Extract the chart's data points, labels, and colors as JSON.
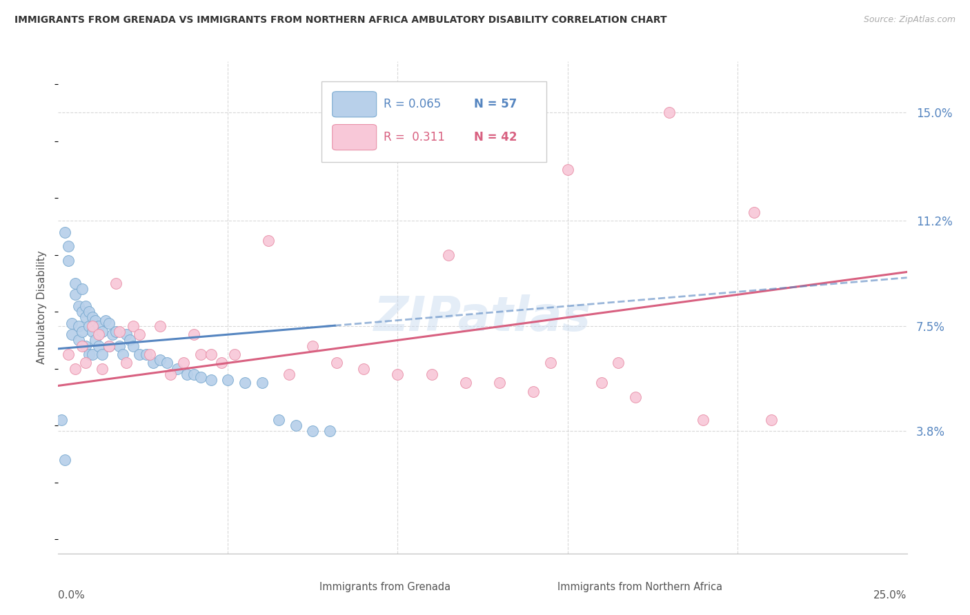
{
  "title": "IMMIGRANTS FROM GRENADA VS IMMIGRANTS FROM NORTHERN AFRICA AMBULATORY DISABILITY CORRELATION CHART",
  "source": "Source: ZipAtlas.com",
  "ylabel": "Ambulatory Disability",
  "yticks": [
    0.0,
    0.038,
    0.075,
    0.112,
    0.15
  ],
  "ytick_labels": [
    "",
    "3.8%",
    "7.5%",
    "11.2%",
    "15.0%"
  ],
  "xmin": 0.0,
  "xmax": 0.25,
  "ymin": -0.005,
  "ymax": 0.168,
  "series1_label": "Immigrants from Grenada",
  "series1_R": "0.065",
  "series1_N": "57",
  "series1_face_color": "#b8d0ea",
  "series1_edge_color": "#7aaad0",
  "series1_line_color": "#5585c0",
  "series2_label": "Immigrants from Northern Africa",
  "series2_R": "0.311",
  "series2_N": "42",
  "series2_face_color": "#f8c8d8",
  "series2_edge_color": "#e890a8",
  "series2_line_color": "#d86080",
  "watermark": "ZIPatlas",
  "blue_x": [
    0.002,
    0.003,
    0.003,
    0.004,
    0.004,
    0.005,
    0.005,
    0.006,
    0.006,
    0.006,
    0.007,
    0.007,
    0.007,
    0.008,
    0.008,
    0.008,
    0.009,
    0.009,
    0.009,
    0.01,
    0.01,
    0.01,
    0.011,
    0.011,
    0.012,
    0.012,
    0.013,
    0.013,
    0.014,
    0.015,
    0.015,
    0.016,
    0.017,
    0.018,
    0.019,
    0.02,
    0.021,
    0.022,
    0.024,
    0.026,
    0.028,
    0.03,
    0.032,
    0.035,
    0.038,
    0.04,
    0.042,
    0.045,
    0.05,
    0.055,
    0.06,
    0.065,
    0.07,
    0.075,
    0.08,
    0.001,
    0.002
  ],
  "blue_y": [
    0.108,
    0.103,
    0.098,
    0.076,
    0.072,
    0.09,
    0.086,
    0.082,
    0.075,
    0.07,
    0.088,
    0.08,
    0.073,
    0.082,
    0.078,
    0.068,
    0.08,
    0.075,
    0.065,
    0.078,
    0.073,
    0.065,
    0.077,
    0.07,
    0.075,
    0.068,
    0.073,
    0.065,
    0.077,
    0.076,
    0.068,
    0.072,
    0.073,
    0.068,
    0.065,
    0.072,
    0.07,
    0.068,
    0.065,
    0.065,
    0.062,
    0.063,
    0.062,
    0.06,
    0.058,
    0.058,
    0.057,
    0.056,
    0.056,
    0.055,
    0.055,
    0.042,
    0.04,
    0.038,
    0.038,
    0.042,
    0.028
  ],
  "pink_x": [
    0.003,
    0.005,
    0.007,
    0.008,
    0.01,
    0.012,
    0.013,
    0.015,
    0.017,
    0.018,
    0.02,
    0.022,
    0.024,
    0.027,
    0.03,
    0.033,
    0.037,
    0.04,
    0.042,
    0.045,
    0.048,
    0.052,
    0.062,
    0.068,
    0.075,
    0.082,
    0.09,
    0.1,
    0.11,
    0.12,
    0.13,
    0.14,
    0.15,
    0.16,
    0.17,
    0.18,
    0.19,
    0.205,
    0.21,
    0.145,
    0.115,
    0.165
  ],
  "pink_y": [
    0.065,
    0.06,
    0.068,
    0.062,
    0.075,
    0.072,
    0.06,
    0.068,
    0.09,
    0.073,
    0.062,
    0.075,
    0.072,
    0.065,
    0.075,
    0.058,
    0.062,
    0.072,
    0.065,
    0.065,
    0.062,
    0.065,
    0.105,
    0.058,
    0.068,
    0.062,
    0.06,
    0.058,
    0.058,
    0.055,
    0.055,
    0.052,
    0.13,
    0.055,
    0.05,
    0.15,
    0.042,
    0.115,
    0.042,
    0.062,
    0.1,
    0.062
  ]
}
